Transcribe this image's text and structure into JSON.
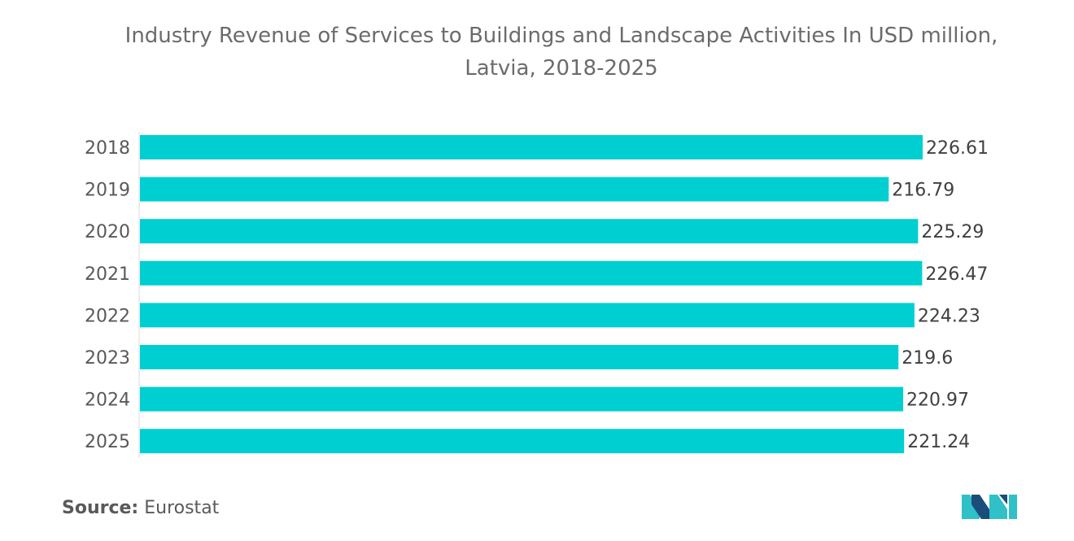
{
  "chart_data": {
    "type": "bar",
    "orientation": "horizontal",
    "title": "Industry Revenue of Services to Buildings and Landscape Activities In USD million,",
    "subtitle": "Latvia, 2018-2025",
    "categories": [
      "2018",
      "2019",
      "2020",
      "2021",
      "2022",
      "2023",
      "2024",
      "2025"
    ],
    "values": [
      226.61,
      216.79,
      225.29,
      226.47,
      224.23,
      219.6,
      220.97,
      221.24
    ],
    "value_labels": [
      "226.61",
      "216.79",
      "225.29",
      "226.47",
      "224.23",
      "219.6",
      "220.97",
      "221.24"
    ],
    "xlim": [
      0,
      226.61
    ],
    "grid": false,
    "legend": "none",
    "bar_color": "#00cfd1"
  },
  "source": {
    "label": "Source:",
    "value": "Eurostat"
  },
  "colors": {
    "logo_dark": "#1a4d7c",
    "logo_light": "#2fc0c8"
  },
  "logo_icon": "mordor-intelligence-logo-icon"
}
